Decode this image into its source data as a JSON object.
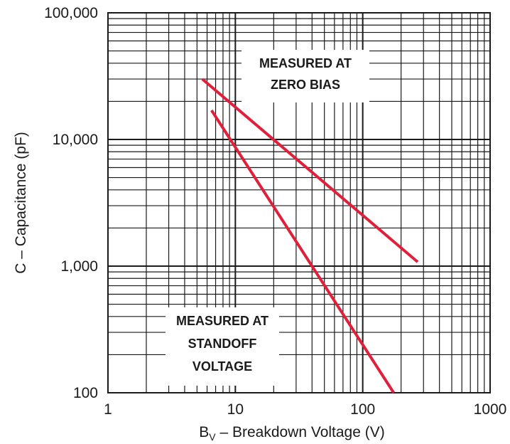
{
  "chart_data": {
    "type": "line",
    "x_scale": "log",
    "y_scale": "log",
    "xlim": [
      1,
      1000
    ],
    "ylim": [
      100,
      100000
    ],
    "grid": true,
    "xlabel_main": "B",
    "xlabel_sub": "V",
    "xlabel_rest": " – Breakdown Voltage (V)",
    "ylabel": "C – Capacitance (pF)",
    "x_tick_labels": [
      "1",
      "10",
      "100",
      "1000"
    ],
    "y_tick_labels": [
      "100",
      "1,000",
      "10,000",
      "100,000"
    ],
    "series": [
      {
        "x": [
          5.5,
          270
        ],
        "y": [
          30000,
          1080
        ]
      },
      {
        "x": [
          6.5,
          175
        ],
        "y": [
          17000,
          100
        ]
      }
    ],
    "annotations": [
      {
        "lines": [
          "MEASURED AT",
          "ZERO BIAS"
        ]
      },
      {
        "lines": [
          "MEASURED AT",
          "STANDOFF",
          "VOLTAGE"
        ]
      }
    ],
    "colors": {
      "series": "#e0203a",
      "grid": "#1a1a1a"
    }
  }
}
